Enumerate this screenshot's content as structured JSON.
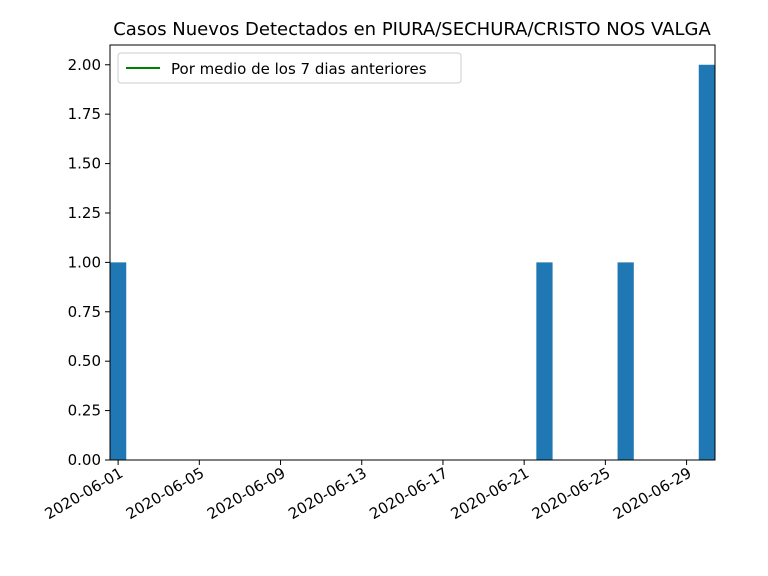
{
  "chart_data": {
    "type": "bar",
    "title": "Casos Nuevos Detectados en PIURA/SECHURA/CRISTO NOS VALGA",
    "xlabel": "",
    "ylabel": "",
    "ylim": [
      0,
      2.1
    ],
    "x_range": [
      "2020-06-01",
      "2020-06-30"
    ],
    "dates": [
      "2020-06-01",
      "2020-06-22",
      "2020-06-26",
      "2020-06-30"
    ],
    "values": [
      1,
      1,
      1,
      2
    ],
    "bar_color": "#1f77b4",
    "x_ticks": [
      "2020-06-01",
      "2020-06-05",
      "2020-06-09",
      "2020-06-13",
      "2020-06-17",
      "2020-06-21",
      "2020-06-25",
      "2020-06-29"
    ],
    "y_ticks": [
      "0.00",
      "0.25",
      "0.50",
      "0.75",
      "1.00",
      "1.25",
      "1.50",
      "1.75",
      "2.00"
    ],
    "legend": {
      "position": "upper-left",
      "entries": [
        {
          "label": "Por medio de los 7 dias anteriores",
          "color": "#008000",
          "marker": "line"
        }
      ]
    },
    "grid": false
  }
}
